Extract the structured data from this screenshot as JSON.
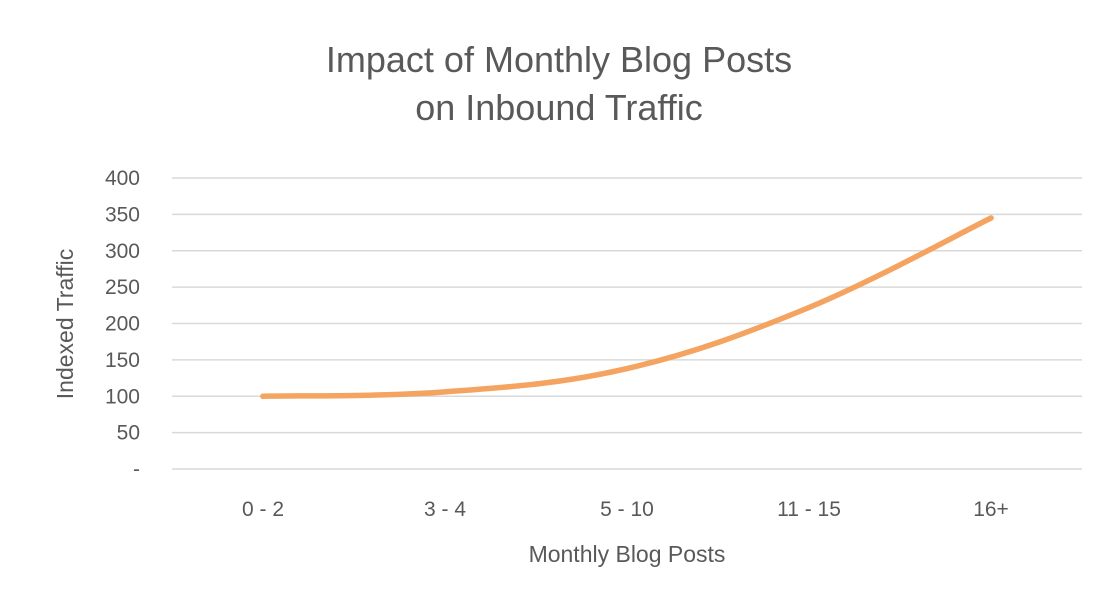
{
  "chart_data": {
    "type": "line",
    "title": "Impact of Monthly Blog Posts on Inbound Traffic",
    "title_lines": [
      "Impact of Monthly Blog Posts",
      "on Inbound Traffic"
    ],
    "xlabel": "Monthly Blog Posts",
    "ylabel": "Indexed Traffic",
    "categories": [
      "0 - 2",
      "3 - 4",
      "5 - 10",
      "11 - 15",
      "16+"
    ],
    "series": [
      {
        "values": [
          100,
          106,
          138,
          222,
          345
        ],
        "color": "#F4A460"
      }
    ],
    "ylim": [
      0,
      400
    ],
    "y_ticks": [
      0,
      50,
      100,
      150,
      200,
      250,
      300,
      350,
      400
    ],
    "y_tick_labels": [
      "-",
      "50",
      "100",
      "150",
      "200",
      "250",
      "300",
      "350",
      "400"
    ],
    "grid": true,
    "legend": "none"
  }
}
